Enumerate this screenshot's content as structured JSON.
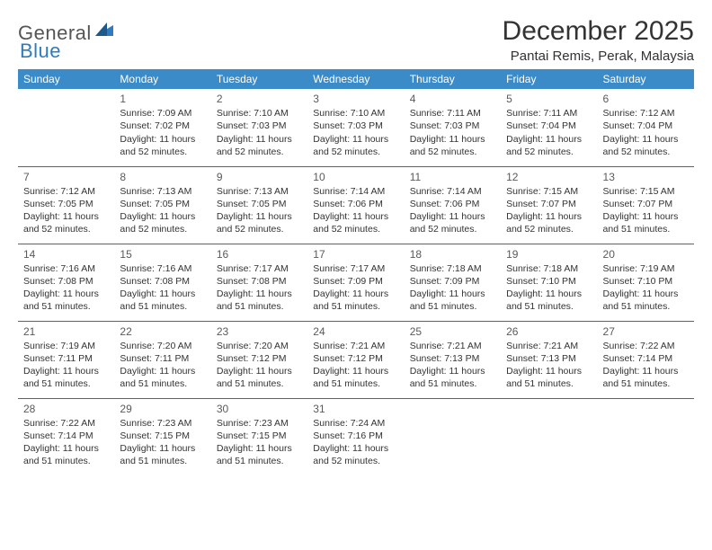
{
  "brand": {
    "general": "General",
    "blue": "Blue",
    "accent_color": "#2f7bbf",
    "header_bg": "#3b8bc9",
    "rule_color": "#2f6da3"
  },
  "title": "December 2025",
  "location": "Pantai Remis, Perak, Malaysia",
  "weekdays": [
    "Sunday",
    "Monday",
    "Tuesday",
    "Wednesday",
    "Thursday",
    "Friday",
    "Saturday"
  ],
  "weeks": [
    [
      {
        "n": "",
        "sr": "",
        "ss": "",
        "dl": ""
      },
      {
        "n": "1",
        "sr": "Sunrise: 7:09 AM",
        "ss": "Sunset: 7:02 PM",
        "dl": "Daylight: 11 hours and 52 minutes."
      },
      {
        "n": "2",
        "sr": "Sunrise: 7:10 AM",
        "ss": "Sunset: 7:03 PM",
        "dl": "Daylight: 11 hours and 52 minutes."
      },
      {
        "n": "3",
        "sr": "Sunrise: 7:10 AM",
        "ss": "Sunset: 7:03 PM",
        "dl": "Daylight: 11 hours and 52 minutes."
      },
      {
        "n": "4",
        "sr": "Sunrise: 7:11 AM",
        "ss": "Sunset: 7:03 PM",
        "dl": "Daylight: 11 hours and 52 minutes."
      },
      {
        "n": "5",
        "sr": "Sunrise: 7:11 AM",
        "ss": "Sunset: 7:04 PM",
        "dl": "Daylight: 11 hours and 52 minutes."
      },
      {
        "n": "6",
        "sr": "Sunrise: 7:12 AM",
        "ss": "Sunset: 7:04 PM",
        "dl": "Daylight: 11 hours and 52 minutes."
      }
    ],
    [
      {
        "n": "7",
        "sr": "Sunrise: 7:12 AM",
        "ss": "Sunset: 7:05 PM",
        "dl": "Daylight: 11 hours and 52 minutes."
      },
      {
        "n": "8",
        "sr": "Sunrise: 7:13 AM",
        "ss": "Sunset: 7:05 PM",
        "dl": "Daylight: 11 hours and 52 minutes."
      },
      {
        "n": "9",
        "sr": "Sunrise: 7:13 AM",
        "ss": "Sunset: 7:05 PM",
        "dl": "Daylight: 11 hours and 52 minutes."
      },
      {
        "n": "10",
        "sr": "Sunrise: 7:14 AM",
        "ss": "Sunset: 7:06 PM",
        "dl": "Daylight: 11 hours and 52 minutes."
      },
      {
        "n": "11",
        "sr": "Sunrise: 7:14 AM",
        "ss": "Sunset: 7:06 PM",
        "dl": "Daylight: 11 hours and 52 minutes."
      },
      {
        "n": "12",
        "sr": "Sunrise: 7:15 AM",
        "ss": "Sunset: 7:07 PM",
        "dl": "Daylight: 11 hours and 52 minutes."
      },
      {
        "n": "13",
        "sr": "Sunrise: 7:15 AM",
        "ss": "Sunset: 7:07 PM",
        "dl": "Daylight: 11 hours and 51 minutes."
      }
    ],
    [
      {
        "n": "14",
        "sr": "Sunrise: 7:16 AM",
        "ss": "Sunset: 7:08 PM",
        "dl": "Daylight: 11 hours and 51 minutes."
      },
      {
        "n": "15",
        "sr": "Sunrise: 7:16 AM",
        "ss": "Sunset: 7:08 PM",
        "dl": "Daylight: 11 hours and 51 minutes."
      },
      {
        "n": "16",
        "sr": "Sunrise: 7:17 AM",
        "ss": "Sunset: 7:08 PM",
        "dl": "Daylight: 11 hours and 51 minutes."
      },
      {
        "n": "17",
        "sr": "Sunrise: 7:17 AM",
        "ss": "Sunset: 7:09 PM",
        "dl": "Daylight: 11 hours and 51 minutes."
      },
      {
        "n": "18",
        "sr": "Sunrise: 7:18 AM",
        "ss": "Sunset: 7:09 PM",
        "dl": "Daylight: 11 hours and 51 minutes."
      },
      {
        "n": "19",
        "sr": "Sunrise: 7:18 AM",
        "ss": "Sunset: 7:10 PM",
        "dl": "Daylight: 11 hours and 51 minutes."
      },
      {
        "n": "20",
        "sr": "Sunrise: 7:19 AM",
        "ss": "Sunset: 7:10 PM",
        "dl": "Daylight: 11 hours and 51 minutes."
      }
    ],
    [
      {
        "n": "21",
        "sr": "Sunrise: 7:19 AM",
        "ss": "Sunset: 7:11 PM",
        "dl": "Daylight: 11 hours and 51 minutes."
      },
      {
        "n": "22",
        "sr": "Sunrise: 7:20 AM",
        "ss": "Sunset: 7:11 PM",
        "dl": "Daylight: 11 hours and 51 minutes."
      },
      {
        "n": "23",
        "sr": "Sunrise: 7:20 AM",
        "ss": "Sunset: 7:12 PM",
        "dl": "Daylight: 11 hours and 51 minutes."
      },
      {
        "n": "24",
        "sr": "Sunrise: 7:21 AM",
        "ss": "Sunset: 7:12 PM",
        "dl": "Daylight: 11 hours and 51 minutes."
      },
      {
        "n": "25",
        "sr": "Sunrise: 7:21 AM",
        "ss": "Sunset: 7:13 PM",
        "dl": "Daylight: 11 hours and 51 minutes."
      },
      {
        "n": "26",
        "sr": "Sunrise: 7:21 AM",
        "ss": "Sunset: 7:13 PM",
        "dl": "Daylight: 11 hours and 51 minutes."
      },
      {
        "n": "27",
        "sr": "Sunrise: 7:22 AM",
        "ss": "Sunset: 7:14 PM",
        "dl": "Daylight: 11 hours and 51 minutes."
      }
    ],
    [
      {
        "n": "28",
        "sr": "Sunrise: 7:22 AM",
        "ss": "Sunset: 7:14 PM",
        "dl": "Daylight: 11 hours and 51 minutes."
      },
      {
        "n": "29",
        "sr": "Sunrise: 7:23 AM",
        "ss": "Sunset: 7:15 PM",
        "dl": "Daylight: 11 hours and 51 minutes."
      },
      {
        "n": "30",
        "sr": "Sunrise: 7:23 AM",
        "ss": "Sunset: 7:15 PM",
        "dl": "Daylight: 11 hours and 51 minutes."
      },
      {
        "n": "31",
        "sr": "Sunrise: 7:24 AM",
        "ss": "Sunset: 7:16 PM",
        "dl": "Daylight: 11 hours and 52 minutes."
      },
      {
        "n": "",
        "sr": "",
        "ss": "",
        "dl": ""
      },
      {
        "n": "",
        "sr": "",
        "ss": "",
        "dl": ""
      },
      {
        "n": "",
        "sr": "",
        "ss": "",
        "dl": ""
      }
    ]
  ]
}
